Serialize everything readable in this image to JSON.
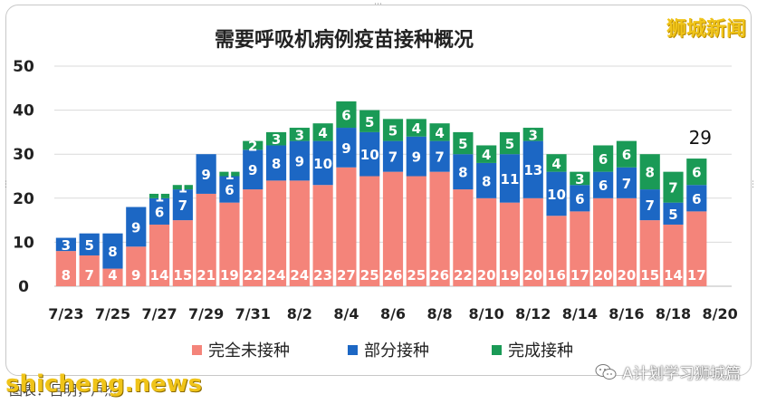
{
  "header": {
    "title": "需要呼吸机病例疫苗接种概况",
    "watermark": "狮城新闻"
  },
  "footer": {
    "caption": "图表：吕明，卢杰",
    "site_watermark": "shicheng.news",
    "account_label": "A计划学习狮城篇",
    "account_icon": "wechat-icon"
  },
  "colors": {
    "unvaccinated": "#f4847a",
    "partial": "#1c67c4",
    "full": "#1a9a56"
  },
  "chart_data": {
    "type": "bar",
    "stacked": true,
    "title": "需要呼吸机病例疫苗接种概况",
    "categories": [
      "7/23",
      "7/24",
      "7/25",
      "7/26",
      "7/27",
      "7/28",
      "7/29",
      "7/30",
      "7/31",
      "8/1",
      "8/2",
      "8/3",
      "8/4",
      "8/5",
      "8/6",
      "8/7",
      "8/8",
      "8/9",
      "8/10",
      "8/11",
      "8/12",
      "8/13",
      "8/14",
      "8/15",
      "8/16",
      "8/17",
      "8/18",
      "8/19",
      "8/20"
    ],
    "tick_labels": [
      "7/23",
      "7/25",
      "7/27",
      "7/29",
      "7/31",
      "8/2",
      "8/4",
      "8/6",
      "8/8",
      "8/10",
      "8/12",
      "8/14",
      "8/16",
      "8/18",
      "8/20"
    ],
    "series": [
      {
        "name": "完全未接种",
        "values": [
          8,
          7,
          4,
          9,
          14,
          15,
          21,
          19,
          22,
          24,
          24,
          23,
          27,
          25,
          26,
          25,
          26,
          22,
          20,
          19,
          20,
          16,
          17,
          20,
          20,
          15,
          14,
          17,
          null
        ]
      },
      {
        "name": "部分接种",
        "values": [
          3,
          5,
          8,
          9,
          6,
          7,
          9,
          6,
          9,
          8,
          9,
          10,
          9,
          10,
          7,
          9,
          7,
          8,
          8,
          11,
          13,
          10,
          6,
          6,
          7,
          7,
          5,
          6,
          null
        ]
      },
      {
        "name": "完成接种",
        "values": [
          0,
          0,
          0,
          0,
          1,
          1,
          0,
          1,
          2,
          3,
          3,
          4,
          6,
          5,
          5,
          4,
          4,
          5,
          4,
          5,
          3,
          4,
          3,
          6,
          6,
          8,
          7,
          6,
          null
        ]
      }
    ],
    "annotations": [
      {
        "category": "8/19",
        "text": "29"
      }
    ],
    "ylim": [
      0,
      50
    ],
    "yticks": [
      0,
      10,
      20,
      30,
      40,
      50
    ],
    "xlabel": "",
    "ylabel": "",
    "grid": true,
    "legend_position": "bottom"
  }
}
